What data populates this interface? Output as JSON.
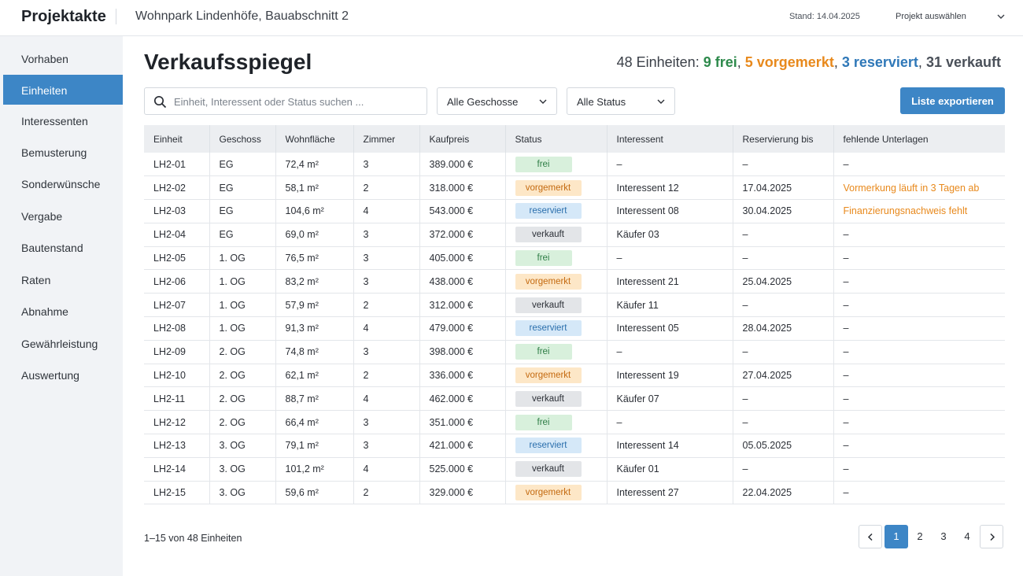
{
  "header": {
    "brand": "Projektakte",
    "project_name": "Wohnpark Lindenhöfe, Bauabschnitt 2",
    "stand": "Stand: 14.04.2025",
    "project_select": "Projekt auswählen"
  },
  "sidebar": {
    "items": [
      {
        "label": "Vorhaben"
      },
      {
        "label": "Einheiten",
        "active": true
      },
      {
        "label": "Interessenten"
      },
      {
        "label": "Bemusterung"
      },
      {
        "label": "Sonderwünsche"
      },
      {
        "label": "Vergabe"
      },
      {
        "label": "Bautenstand"
      },
      {
        "label": "Raten"
      },
      {
        "label": "Abnahme"
      },
      {
        "label": "Gewährleistung"
      },
      {
        "label": "Auswertung"
      }
    ]
  },
  "main": {
    "title": "Verkaufsspiegel",
    "summary": {
      "prefix": "48 Einheiten:",
      "frei": "9 frei",
      "vorgemerkt": "5 vorgemerkt",
      "reserviert": "3 reserviert",
      "verkauft": "31 verkauft"
    },
    "search": {
      "placeholder": "Einheit, Interessent oder Status suchen ...",
      "value": ""
    },
    "filter_floor": "Alle Geschosse",
    "filter_status": "Alle Status",
    "export_label": "Liste exportieren"
  },
  "table": {
    "columns": [
      "Einheit",
      "Geschoss",
      "Wohnfläche",
      "Zimmer",
      "Kaufpreis",
      "Status",
      "Interessent",
      "Reservierung bis",
      "fehlende Unterlagen"
    ],
    "rows": [
      [
        "LH2-01",
        "EG",
        "72,4 m²",
        "3",
        "389.000 €",
        "frei",
        "–",
        "–",
        "–"
      ],
      [
        "LH2-02",
        "EG",
        "58,1 m²",
        "2",
        "318.000 €",
        "vorgemerkt",
        "Interessent 12",
        "17.04.2025",
        "Vormerkung läuft in 3 Tagen ab"
      ],
      [
        "LH2-03",
        "EG",
        "104,6 m²",
        "4",
        "543.000 €",
        "reserviert",
        "Interessent 08",
        "30.04.2025",
        "Finanzierungsnachweis fehlt"
      ],
      [
        "LH2-04",
        "EG",
        "69,0 m²",
        "3",
        "372.000 €",
        "verkauft",
        "Käufer 03",
        "–",
        "–"
      ],
      [
        "LH2-05",
        "1. OG",
        "76,5 m²",
        "3",
        "405.000 €",
        "frei",
        "–",
        "–",
        "–"
      ],
      [
        "LH2-06",
        "1. OG",
        "83,2 m²",
        "3",
        "438.000 €",
        "vorgemerkt",
        "Interessent 21",
        "25.04.2025",
        "–"
      ],
      [
        "LH2-07",
        "1. OG",
        "57,9 m²",
        "2",
        "312.000 €",
        "verkauft",
        "Käufer 11",
        "–",
        "–"
      ],
      [
        "LH2-08",
        "1. OG",
        "91,3 m²",
        "4",
        "479.000 €",
        "reserviert",
        "Interessent 05",
        "28.04.2025",
        "–"
      ],
      [
        "LH2-09",
        "2. OG",
        "74,8 m²",
        "3",
        "398.000 €",
        "frei",
        "–",
        "–",
        "–"
      ],
      [
        "LH2-10",
        "2. OG",
        "62,1 m²",
        "2",
        "336.000 €",
        "vorgemerkt",
        "Interessent 19",
        "27.04.2025",
        "–"
      ],
      [
        "LH2-11",
        "2. OG",
        "88,7 m²",
        "4",
        "462.000 €",
        "verkauft",
        "Käufer 07",
        "–",
        "–"
      ],
      [
        "LH2-12",
        "2. OG",
        "66,4 m²",
        "3",
        "351.000 €",
        "frei",
        "–",
        "–",
        "–"
      ],
      [
        "LH2-13",
        "3. OG",
        "79,1 m²",
        "3",
        "421.000 €",
        "reserviert",
        "Interessent 14",
        "05.05.2025",
        "–"
      ],
      [
        "LH2-14",
        "3. OG",
        "101,2 m²",
        "4",
        "525.000 €",
        "verkauft",
        "Käufer 01",
        "–",
        "–"
      ],
      [
        "LH2-15",
        "3. OG",
        "59,6 m²",
        "2",
        "329.000 €",
        "vorgemerkt",
        "Interessent 27",
        "22.04.2025",
        "–"
      ]
    ]
  },
  "footer": {
    "count": "1–15 von 48 Einheiten",
    "pages": [
      "1",
      "2",
      "3",
      "4"
    ],
    "current_page": "1"
  },
  "icons": {
    "search": "search-icon",
    "dropdown": "chevron-down-icon",
    "prev": "chevron-left-icon",
    "next": "chevron-right-icon"
  },
  "colors": {
    "accent": "#3d86c6",
    "frei": "#2e8a4c",
    "vorgemerkt": "#e8891c",
    "reserviert": "#2f78b8",
    "verkauft": "#4a5059"
  }
}
